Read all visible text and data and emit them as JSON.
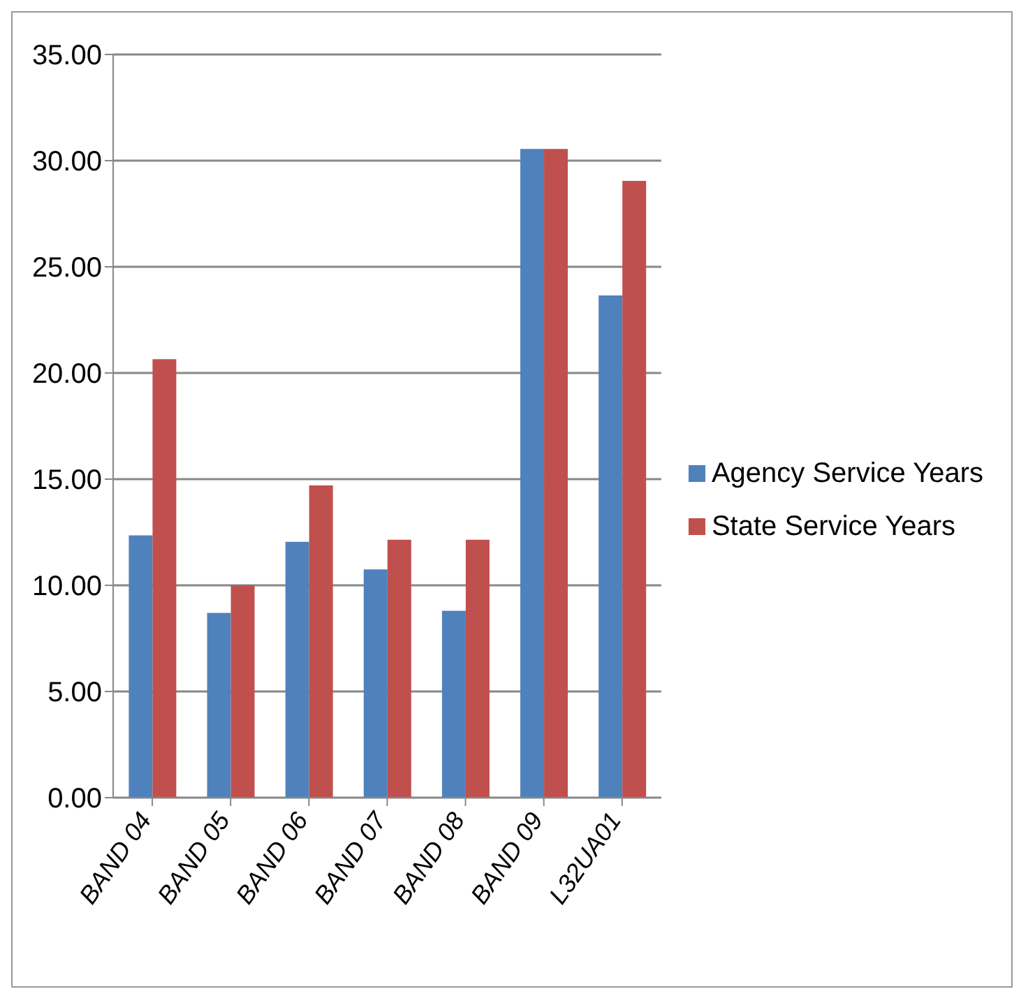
{
  "chart_data": {
    "type": "bar",
    "categories": [
      "BAND 04",
      "BAND 05",
      "BAND 06",
      "BAND 07",
      "BAND 08",
      "BAND 09",
      "L32UA01"
    ],
    "series": [
      {
        "name": "Agency Service Years",
        "color": "#4f81bd",
        "values": [
          12.35,
          8.7,
          12.05,
          10.75,
          8.8,
          30.55,
          23.65
        ]
      },
      {
        "name": "State Service Years",
        "color": "#c0504d",
        "values": [
          20.65,
          10,
          14.7,
          12.15,
          12.15,
          30.55,
          29.05
        ]
      }
    ],
    "ylim": [
      0,
      35
    ],
    "yticks": [
      {
        "value": 0,
        "label": "0.00"
      },
      {
        "value": 5,
        "label": "5.00"
      },
      {
        "value": 10,
        "label": "10.00"
      },
      {
        "value": 15,
        "label": "15.00"
      },
      {
        "value": 20,
        "label": "20.00"
      },
      {
        "value": 25,
        "label": "25.00"
      },
      {
        "value": 30,
        "label": "30.00"
      },
      {
        "value": 35,
        "label": "35.00"
      }
    ],
    "grid": "y",
    "legend": "right"
  }
}
